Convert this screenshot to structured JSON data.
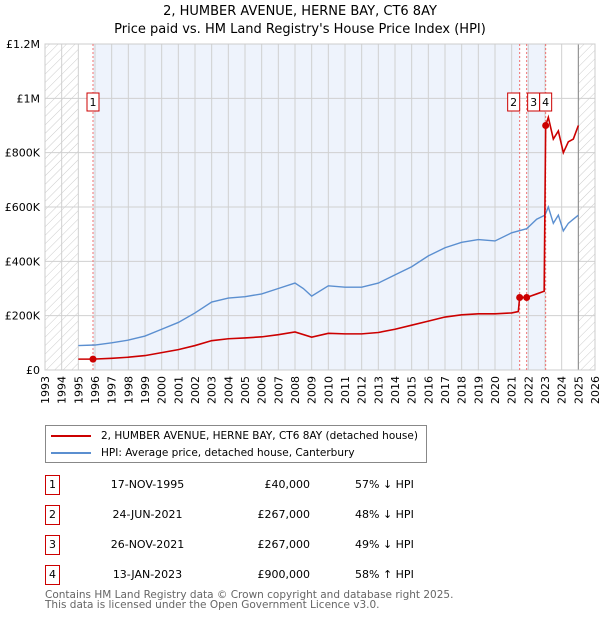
{
  "chart_data": {
    "type": "line",
    "title": "2, HUMBER AVENUE, HERNE BAY, CT6 8AY",
    "subtitle": "Price paid vs. HM Land Registry's House Price Index (HPI)",
    "xlim": [
      1993,
      2026
    ],
    "ylim": [
      0,
      1200000
    ],
    "x_ticks": [
      "1993",
      "1994",
      "1995",
      "1996",
      "1997",
      "1998",
      "1999",
      "2000",
      "2001",
      "2002",
      "2003",
      "2004",
      "2005",
      "2006",
      "2007",
      "2008",
      "2009",
      "2010",
      "2011",
      "2012",
      "2013",
      "2014",
      "2015",
      "2016",
      "2017",
      "2018",
      "2019",
      "2020",
      "2021",
      "2022",
      "2023",
      "2024",
      "2025",
      "2026"
    ],
    "y_ticks": [
      {
        "v": 0,
        "label": "£0"
      },
      {
        "v": 200000,
        "label": "£200K"
      },
      {
        "v": 400000,
        "label": "£400K"
      },
      {
        "v": 600000,
        "label": "£600K"
      },
      {
        "v": 800000,
        "label": "£800K"
      },
      {
        "v": 1000000,
        "label": "£1M"
      },
      {
        "v": 1200000,
        "label": "£1.2M"
      }
    ],
    "hatched_ranges": [
      [
        1993,
        1995
      ],
      [
        2025,
        2026
      ]
    ],
    "series": [
      {
        "name": "2, HUMBER AVENUE, HERNE BAY, CT6 8AY (detached house)",
        "color": "#cc0000",
        "x": [
          1995,
          1995.88,
          1997,
          1998,
          1999,
          2000,
          2001,
          2002,
          2003,
          2004,
          2005,
          2006,
          2007,
          2008,
          2009,
          2010,
          2011,
          2012,
          2013,
          2014,
          2015,
          2016,
          2017,
          2018,
          2019,
          2020,
          2021,
          2021.4,
          2021.48,
          2021.9,
          2022.5,
          2022.95,
          2023.04,
          2023.2,
          2023.5,
          2023.8,
          2024.1,
          2024.4,
          2024.7,
          2025
        ],
        "y": [
          40000,
          40000,
          43000,
          47000,
          53000,
          64000,
          75000,
          90000,
          108000,
          115000,
          118000,
          122000,
          130000,
          140000,
          121000,
          135000,
          133000,
          133000,
          138000,
          150000,
          165000,
          180000,
          195000,
          203000,
          207000,
          207000,
          210000,
          215000,
          267000,
          267000,
          280000,
          290000,
          900000,
          930000,
          850000,
          880000,
          800000,
          840000,
          850000,
          900000
        ]
      },
      {
        "name": "HPI: Average price, detached house, Canterbury",
        "color": "#5b8fd0",
        "x": [
          1995,
          1996,
          1997,
          1998,
          1999,
          2000,
          2001,
          2002,
          2003,
          2004,
          2005,
          2006,
          2007,
          2008,
          2008.5,
          2009,
          2010,
          2011,
          2012,
          2013,
          2014,
          2015,
          2016,
          2017,
          2018,
          2019,
          2020,
          2021,
          2021.9,
          2022.5,
          2023,
          2023.2,
          2023.5,
          2023.8,
          2024.1,
          2024.4,
          2024.7,
          2025
        ],
        "y": [
          90000,
          92000,
          100000,
          110000,
          125000,
          150000,
          175000,
          210000,
          250000,
          265000,
          270000,
          280000,
          300000,
          320000,
          300000,
          272000,
          310000,
          305000,
          305000,
          320000,
          350000,
          380000,
          420000,
          450000,
          470000,
          480000,
          475000,
          505000,
          520000,
          555000,
          570000,
          600000,
          540000,
          570000,
          512000,
          540000,
          555000,
          570000
        ]
      }
    ],
    "markers": [
      {
        "label": "1",
        "x": 1995.88,
        "y": 40000
      },
      {
        "label": "2",
        "x": 2021.48,
        "y": 267000
      },
      {
        "label": "3",
        "x": 2021.9,
        "y": 267000
      },
      {
        "label": "4",
        "x": 2023.04,
        "y": 900000
      }
    ]
  },
  "legend": [
    "2, HUMBER AVENUE, HERNE BAY, CT6 8AY (detached house)",
    "HPI: Average price, detached house, Canterbury"
  ],
  "transactions": [
    {
      "num": "1",
      "date": "17-NOV-1995",
      "price": "£40,000",
      "hpi": "57% ↓ HPI"
    },
    {
      "num": "2",
      "date": "24-JUN-2021",
      "price": "£267,000",
      "hpi": "48% ↓ HPI"
    },
    {
      "num": "3",
      "date": "26-NOV-2021",
      "price": "£267,000",
      "hpi": "49% ↓ HPI"
    },
    {
      "num": "4",
      "date": "13-JAN-2023",
      "price": "£900,000",
      "hpi": "58% ↑ HPI"
    }
  ],
  "footer": [
    "Contains HM Land Registry data © Crown copyright and database right 2025.",
    "This data is licensed under the Open Government Licence v3.0."
  ]
}
